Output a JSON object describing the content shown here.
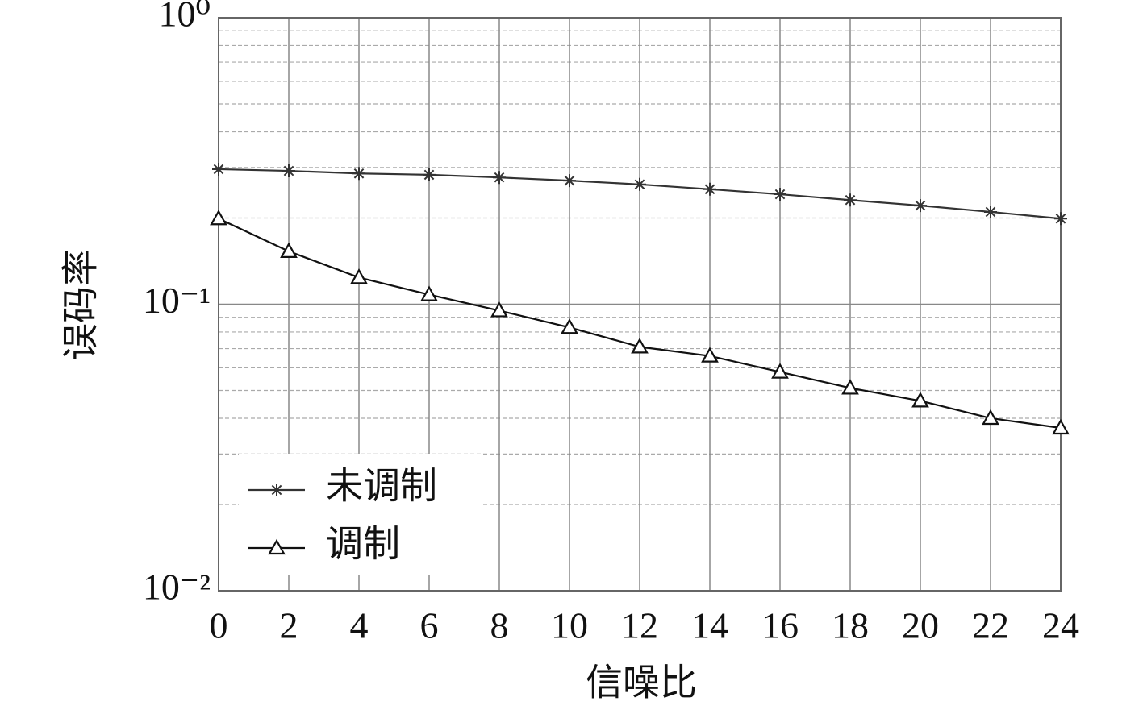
{
  "chart_data": {
    "type": "line",
    "x_label": "信噪比",
    "y_label": "误码率",
    "x": [
      0,
      2,
      4,
      6,
      8,
      10,
      12,
      14,
      16,
      18,
      20,
      22,
      24
    ],
    "series": [
      {
        "name": "未调制",
        "color": "#333333",
        "marker": "star",
        "values": [
          0.296,
          0.292,
          0.286,
          0.283,
          0.277,
          0.27,
          0.262,
          0.252,
          0.242,
          0.231,
          0.221,
          0.21,
          0.199
        ]
      },
      {
        "name": "调制",
        "color": "#111111",
        "marker": "triangle",
        "values": [
          0.199,
          0.153,
          0.124,
          0.108,
          0.095,
          0.083,
          0.071,
          0.066,
          0.058,
          0.051,
          0.046,
          0.04,
          0.037
        ]
      }
    ],
    "xlim": [
      0,
      24
    ],
    "xticks": [
      0,
      2,
      4,
      6,
      8,
      10,
      12,
      14,
      16,
      18,
      20,
      22,
      24
    ],
    "ylim": [
      0.01,
      1
    ],
    "yscale": "log",
    "yticks": [
      {
        "value": 0.01,
        "label": "10⁻²"
      },
      {
        "value": 0.1,
        "label": "10⁻¹"
      },
      {
        "value": 1,
        "label": "10⁰"
      }
    ],
    "yminorticks": [
      0.02,
      0.03,
      0.04,
      0.05,
      0.06,
      0.07,
      0.08,
      0.09,
      0.2,
      0.3,
      0.4,
      0.5,
      0.6,
      0.7,
      0.8,
      0.9
    ],
    "grid": true,
    "legend": "lower left"
  }
}
